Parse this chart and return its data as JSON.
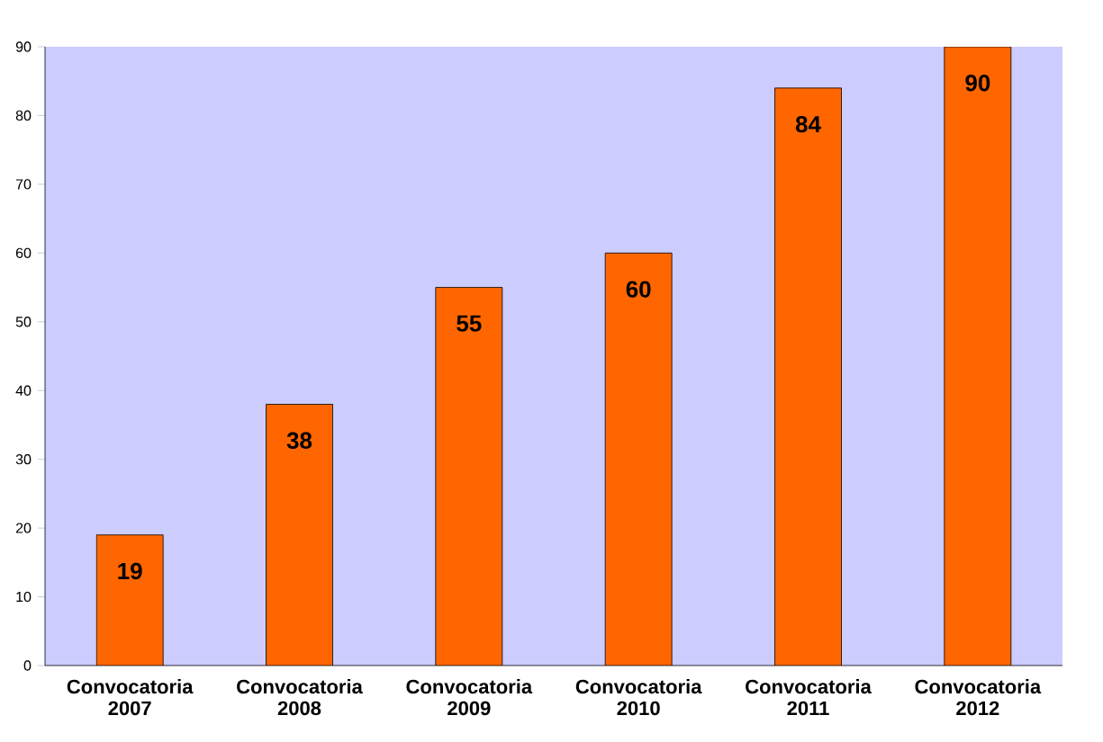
{
  "chart_data": {
    "type": "bar",
    "categories": [
      "Convocatoria 2007",
      "Convocatoria 2008",
      "Convocatoria 2009",
      "Convocatoria 2010",
      "Convocatoria 2011",
      "Convocatoria 2012"
    ],
    "values": [
      19,
      38,
      55,
      60,
      84,
      90
    ],
    "color": "#ff6600",
    "ylim": [
      0,
      90
    ],
    "yticks": [
      0,
      10,
      20,
      30,
      40,
      50,
      60,
      70,
      80,
      90
    ],
    "data_labels": true,
    "grid": false
  }
}
